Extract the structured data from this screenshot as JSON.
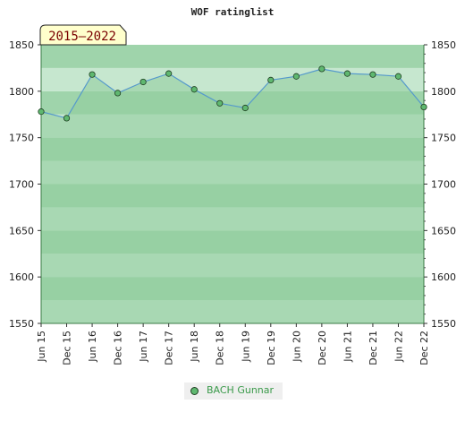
{
  "chart_data": {
    "type": "area",
    "title": "WOF ratinglist",
    "period_label": "2015—2022",
    "x": [
      "Jun 15",
      "Dec 15",
      "Jun 16",
      "Dec 16",
      "Jun 17",
      "Dec 17",
      "Jun 18",
      "Dec 18",
      "Jun 19",
      "Dec 19",
      "Jun 20",
      "Dec 20",
      "Jun 21",
      "Dec 21",
      "Jun 22",
      "Dec 22"
    ],
    "series": [
      {
        "name": "BACH Gunnar",
        "values": [
          1778,
          1771,
          1818,
          1798,
          1810,
          1819,
          1802,
          1787,
          1782,
          1812,
          1816,
          1824,
          1819,
          1818,
          1816,
          1783
        ]
      }
    ],
    "ylim": [
      1550,
      1850
    ],
    "yticks": [
      1550,
      1600,
      1650,
      1700,
      1750,
      1800,
      1850
    ],
    "ytick_labels_left": [
      "1550",
      "1600",
      "1650",
      "1700",
      "1750",
      "1800",
      "1850"
    ],
    "ytick_labels_right": [
      "1550",
      "1600",
      "1650",
      "1700",
      "1750",
      "1800",
      "1850"
    ],
    "legend_position": "bottom-center",
    "colors": {
      "line": "#5599cc",
      "marker_fill": "#5fb870",
      "marker_edge": "#1f3f22",
      "area_fill": "#8fcc9c",
      "band_light": "#c6e7cf",
      "band_dark": "#9fd4ab",
      "legend_text": "#3a9a4a",
      "period_text": "#7a0000",
      "period_bg": "#ffffcc"
    }
  }
}
